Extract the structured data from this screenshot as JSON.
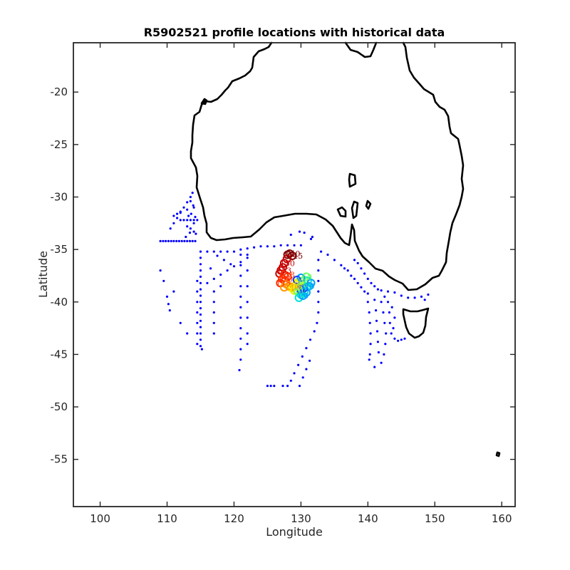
{
  "chart_data": {
    "type": "scatter",
    "title": "R5902521 profile locations with historical data",
    "xlabel": "Longitude",
    "ylabel": "Latitude",
    "xlim": [
      96,
      162
    ],
    "ylim": [
      -59.5,
      -15.3
    ],
    "x_ticks": [
      "100",
      "110",
      "120",
      "130",
      "140",
      "150",
      "160"
    ],
    "y_ticks": [
      "-20",
      "-25",
      "-30",
      "-35",
      "-40",
      "-45",
      "-50",
      "-55"
    ],
    "grid": false,
    "legend": "none",
    "colors": {
      "historical": "#0000ff",
      "coastline": "#000000",
      "profile_colormap": [
        "#1e3cff",
        "#00a0ff",
        "#00e0d0",
        "#70ff60",
        "#f0f000",
        "#ff9900",
        "#ff3000",
        "#c80000",
        "#800000"
      ]
    },
    "series": [
      {
        "points": [
          [
            109,
            -34.2
          ],
          [
            109.4,
            -34.2
          ],
          [
            109.8,
            -34.2
          ],
          [
            110.2,
            -34.2
          ],
          [
            110.6,
            -34.2
          ],
          [
            111,
            -34.2
          ],
          [
            111.4,
            -34.2
          ],
          [
            111.8,
            -34.2
          ],
          [
            112.2,
            -34.2
          ],
          [
            112.6,
            -34.2
          ],
          [
            113,
            -34.2
          ],
          [
            113.4,
            -34.2
          ],
          [
            113.8,
            -34.2
          ],
          [
            114.2,
            -34.2
          ],
          [
            110.5,
            -33
          ],
          [
            111,
            -32.5
          ],
          [
            111.5,
            -32
          ],
          [
            112,
            -31.5
          ],
          [
            112.5,
            -31
          ],
          [
            113,
            -30.5
          ],
          [
            113.5,
            -30
          ],
          [
            113.8,
            -29.6
          ],
          [
            112,
            -32.2
          ],
          [
            112.5,
            -32.2
          ],
          [
            113,
            -32.2
          ],
          [
            113.5,
            -32.2
          ],
          [
            114,
            -32.2
          ],
          [
            114.5,
            -32.2
          ],
          [
            111,
            -31.8
          ],
          [
            111.5,
            -31.6
          ],
          [
            112,
            -31.4
          ],
          [
            113,
            -31.2
          ],
          [
            114,
            -31
          ],
          [
            113,
            -32.8
          ],
          [
            113.5,
            -33
          ],
          [
            114,
            -33.3
          ],
          [
            114.3,
            -33.5
          ],
          [
            113.2,
            -31.8
          ],
          [
            113.6,
            -31.6
          ],
          [
            114.2,
            -31.9
          ],
          [
            113.9,
            -30.8
          ],
          [
            113.5,
            -30.4
          ],
          [
            114,
            -32.5
          ],
          [
            113.4,
            -33.4
          ],
          [
            112.8,
            -33.8
          ],
          [
            115,
            -35.2
          ],
          [
            115,
            -35.8
          ],
          [
            115,
            -36.4
          ],
          [
            115,
            -37
          ],
          [
            115,
            -37.6
          ],
          [
            115,
            -38.2
          ],
          [
            115,
            -38.8
          ],
          [
            115,
            -39.4
          ],
          [
            115,
            -40
          ],
          [
            115,
            -40.6
          ],
          [
            115,
            -41.2
          ],
          [
            115,
            -41.8
          ],
          [
            115,
            -42.4
          ],
          [
            115,
            -43
          ],
          [
            115,
            -43.6
          ],
          [
            115,
            -44.2
          ],
          [
            115.2,
            -44.5
          ],
          [
            114.5,
            -38
          ],
          [
            114.5,
            -39
          ],
          [
            114.5,
            -40
          ],
          [
            114.5,
            -41
          ],
          [
            114.5,
            -42
          ],
          [
            114.5,
            -43
          ],
          [
            114.5,
            -44
          ],
          [
            116,
            -35.2
          ],
          [
            117,
            -35.2
          ],
          [
            118,
            -35.2
          ],
          [
            119,
            -35.2
          ],
          [
            120,
            -35.2
          ],
          [
            121,
            -35
          ],
          [
            122,
            -34.9
          ],
          [
            123,
            -34.8
          ],
          [
            124,
            -34.7
          ],
          [
            125,
            -34.7
          ],
          [
            126,
            -34.7
          ],
          [
            127,
            -34.6
          ],
          [
            128,
            -34.6
          ],
          [
            129,
            -34.6
          ],
          [
            130,
            -34.6
          ],
          [
            116,
            -38.2
          ],
          [
            117,
            -37.8
          ],
          [
            118,
            -37.4
          ],
          [
            119,
            -37
          ],
          [
            120,
            -36.6
          ],
          [
            121,
            -36.2
          ],
          [
            122,
            -35.8
          ],
          [
            117.5,
            -35.6
          ],
          [
            118.5,
            -36
          ],
          [
            119.5,
            -36.4
          ],
          [
            116.5,
            -36.8
          ],
          [
            118,
            -38.5
          ],
          [
            117,
            -39
          ],
          [
            117,
            -40
          ],
          [
            117,
            -41
          ],
          [
            117,
            -42
          ],
          [
            117,
            -43
          ],
          [
            121,
            -35.5
          ],
          [
            121,
            -36.5
          ],
          [
            121,
            -37.5
          ],
          [
            121,
            -38.5
          ],
          [
            121,
            -39.5
          ],
          [
            121,
            -40.5
          ],
          [
            121,
            -41.5
          ],
          [
            121,
            -42.5
          ],
          [
            121,
            -43.5
          ],
          [
            121,
            -44.5
          ],
          [
            121,
            -45.5
          ],
          [
            120.8,
            -46.5
          ],
          [
            122,
            -35.5
          ],
          [
            122,
            -37
          ],
          [
            122,
            -38.5
          ],
          [
            122,
            -40
          ],
          [
            122,
            -41.5
          ],
          [
            122,
            -43
          ],
          [
            122,
            -44
          ],
          [
            125,
            -48
          ],
          [
            125.5,
            -48
          ],
          [
            126,
            -48
          ],
          [
            127.3,
            -48
          ],
          [
            128,
            -48
          ],
          [
            128.5,
            -47.5
          ],
          [
            129,
            -46.8
          ],
          [
            129.6,
            -46
          ],
          [
            130.2,
            -45.2
          ],
          [
            130.8,
            -44.4
          ],
          [
            131.4,
            -43.6
          ],
          [
            132,
            -42.8
          ],
          [
            132.4,
            -42
          ],
          [
            132.6,
            -41
          ],
          [
            132.6,
            -40
          ],
          [
            132.6,
            -39
          ],
          [
            132.6,
            -38
          ],
          [
            132.6,
            -37
          ],
          [
            132.6,
            -36
          ],
          [
            129.8,
            -48
          ],
          [
            130.3,
            -47.2
          ],
          [
            130.8,
            -46.4
          ],
          [
            131.3,
            -45.6
          ],
          [
            131.5,
            -34
          ],
          [
            131.7,
            -33.8
          ],
          [
            130.5,
            -33.4
          ],
          [
            129.8,
            -33.3
          ],
          [
            128.5,
            -33.6
          ],
          [
            133,
            -35.2
          ],
          [
            134,
            -35.5
          ],
          [
            135,
            -36
          ],
          [
            136,
            -36.5
          ],
          [
            136.5,
            -36.8
          ],
          [
            137,
            -37
          ],
          [
            137.5,
            -37.5
          ],
          [
            138,
            -37.8
          ],
          [
            138.5,
            -38.2
          ],
          [
            139,
            -38.6
          ],
          [
            139.5,
            -39
          ],
          [
            140,
            -39.2
          ],
          [
            140,
            -40
          ],
          [
            140.2,
            -41
          ],
          [
            140.3,
            -42
          ],
          [
            140.4,
            -43
          ],
          [
            140.4,
            -44
          ],
          [
            140.3,
            -45
          ],
          [
            140.2,
            -45.5
          ],
          [
            141,
            -39.8
          ],
          [
            141.2,
            -40.8
          ],
          [
            141.3,
            -41.8
          ],
          [
            141.4,
            -42.8
          ],
          [
            141.5,
            -43.8
          ],
          [
            141.6,
            -44.8
          ],
          [
            142,
            -40
          ],
          [
            142.3,
            -41
          ],
          [
            142.5,
            -42
          ],
          [
            142.7,
            -43
          ],
          [
            142.6,
            -44
          ],
          [
            142.4,
            -45
          ],
          [
            142,
            -45.8
          ],
          [
            141,
            -46.2
          ],
          [
            142.5,
            -39.5
          ],
          [
            143,
            -40
          ],
          [
            143.2,
            -41
          ],
          [
            143.3,
            -42
          ],
          [
            143.5,
            -43
          ],
          [
            144,
            -43.5
          ],
          [
            144.5,
            -43.7
          ],
          [
            145,
            -43.6
          ],
          [
            145.5,
            -43.5
          ],
          [
            143.8,
            -42.5
          ],
          [
            144,
            -41.5
          ],
          [
            143.6,
            -40.5
          ],
          [
            138,
            -36
          ],
          [
            138.5,
            -36.3
          ],
          [
            139,
            -36.8
          ],
          [
            139.5,
            -37.3
          ],
          [
            140,
            -37.8
          ],
          [
            140.5,
            -38.2
          ],
          [
            141,
            -38.5
          ],
          [
            141.5,
            -38.8
          ],
          [
            142,
            -38.9
          ],
          [
            143,
            -39
          ],
          [
            144,
            -39.1
          ],
          [
            145,
            -39.4
          ],
          [
            146,
            -39.6
          ],
          [
            147,
            -39.6
          ],
          [
            148,
            -39.5
          ],
          [
            149,
            -39.3
          ],
          [
            148.5,
            -39.8
          ],
          [
            109,
            -37
          ],
          [
            109.5,
            -38
          ],
          [
            110,
            -39.5
          ],
          [
            110.2,
            -40.2
          ],
          [
            110.4,
            -40.8
          ],
          [
            112,
            -42
          ],
          [
            113,
            -43
          ],
          [
            111,
            -39
          ]
        ]
      }
    ],
    "profile_points": [
      [
        128.3,
        -35.4
      ],
      [
        128.0,
        -35.5
      ],
      [
        128.7,
        -35.6
      ],
      [
        127.9,
        -35.9
      ],
      [
        127.5,
        -36.3
      ],
      [
        127.3,
        -36.7
      ],
      [
        127.0,
        -37.0
      ],
      [
        126.8,
        -37.3
      ],
      [
        127.5,
        -37.4
      ],
      [
        128.0,
        -37.6
      ],
      [
        127.2,
        -37.8
      ],
      [
        127.6,
        -38.0
      ],
      [
        126.9,
        -38.2
      ],
      [
        127.8,
        -38.3
      ],
      [
        128.2,
        -38.5
      ],
      [
        127.5,
        -38.6
      ],
      [
        128.5,
        -38.6
      ],
      [
        129.0,
        -38.5
      ],
      [
        128.7,
        -38.7
      ],
      [
        129.3,
        -38.3
      ],
      [
        129.6,
        -38.1
      ],
      [
        129.0,
        -38.9
      ],
      [
        129.5,
        -39.0
      ],
      [
        129.8,
        -38.6
      ],
      [
        130.2,
        -38.3
      ],
      [
        130.5,
        -37.9
      ],
      [
        130.8,
        -37.6
      ],
      [
        131.0,
        -38.0
      ],
      [
        130.9,
        -38.6
      ],
      [
        130.5,
        -39.0
      ],
      [
        130.0,
        -39.3
      ],
      [
        129.7,
        -39.6
      ],
      [
        130.3,
        -39.4
      ],
      [
        130.8,
        -39.1
      ],
      [
        131.2,
        -38.5
      ],
      [
        131.5,
        -38.2
      ],
      [
        130.0,
        -37.7
      ],
      [
        129.4,
        -37.9
      ],
      [
        129.9,
        -38.8
      ],
      [
        130.4,
        -38.7
      ]
    ],
    "profile_labels": [
      "140",
      "145",
      "150",
      "153",
      "138",
      "120",
      "115",
      "110",
      "100",
      "90",
      "80",
      "70",
      "60",
      "50",
      "40",
      "30",
      "20",
      "10",
      "1"
    ]
  }
}
